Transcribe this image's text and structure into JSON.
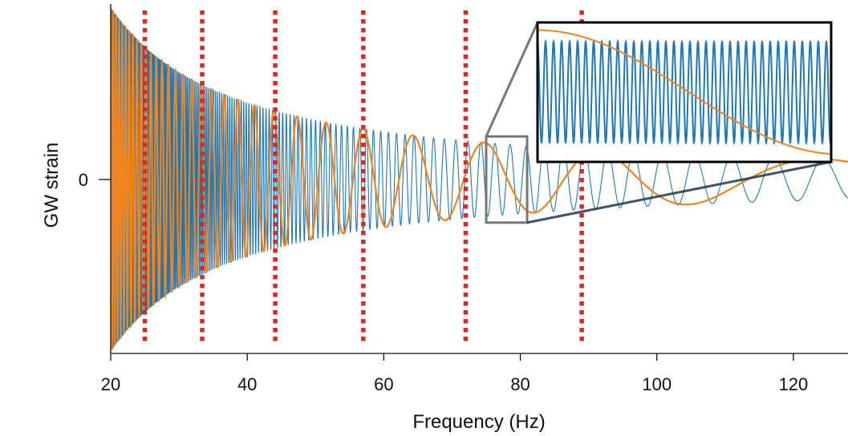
{
  "chart_data": {
    "type": "line",
    "xlabel": "Frequency (Hz)",
    "ylabel": "GW strain",
    "xlim": [
      20,
      128
    ],
    "ylim": [
      -1,
      1
    ],
    "x_ticks": [
      20,
      40,
      60,
      80,
      100,
      120
    ],
    "y_ticks": [
      0
    ],
    "grid": false,
    "legend": "none",
    "series": [
      {
        "description_key": "chirp",
        "color": "#1f77b4",
        "amplitude_law": "f^(-7/6)",
        "x_range": [
          20,
          128
        ]
      },
      {
        "description_key": "slow",
        "color": "#f0841e",
        "x_range": [
          20,
          128
        ]
      }
    ],
    "markers_vertical": {
      "x": [
        25,
        33.4,
        44.1,
        57,
        72,
        89
      ],
      "color": "#d62a28",
      "style": "dotted"
    },
    "inset": {
      "zoom_x_range": [
        75,
        81
      ],
      "zoom_y_range": [
        -0.25,
        0.25
      ],
      "placement": "top-right"
    }
  }
}
